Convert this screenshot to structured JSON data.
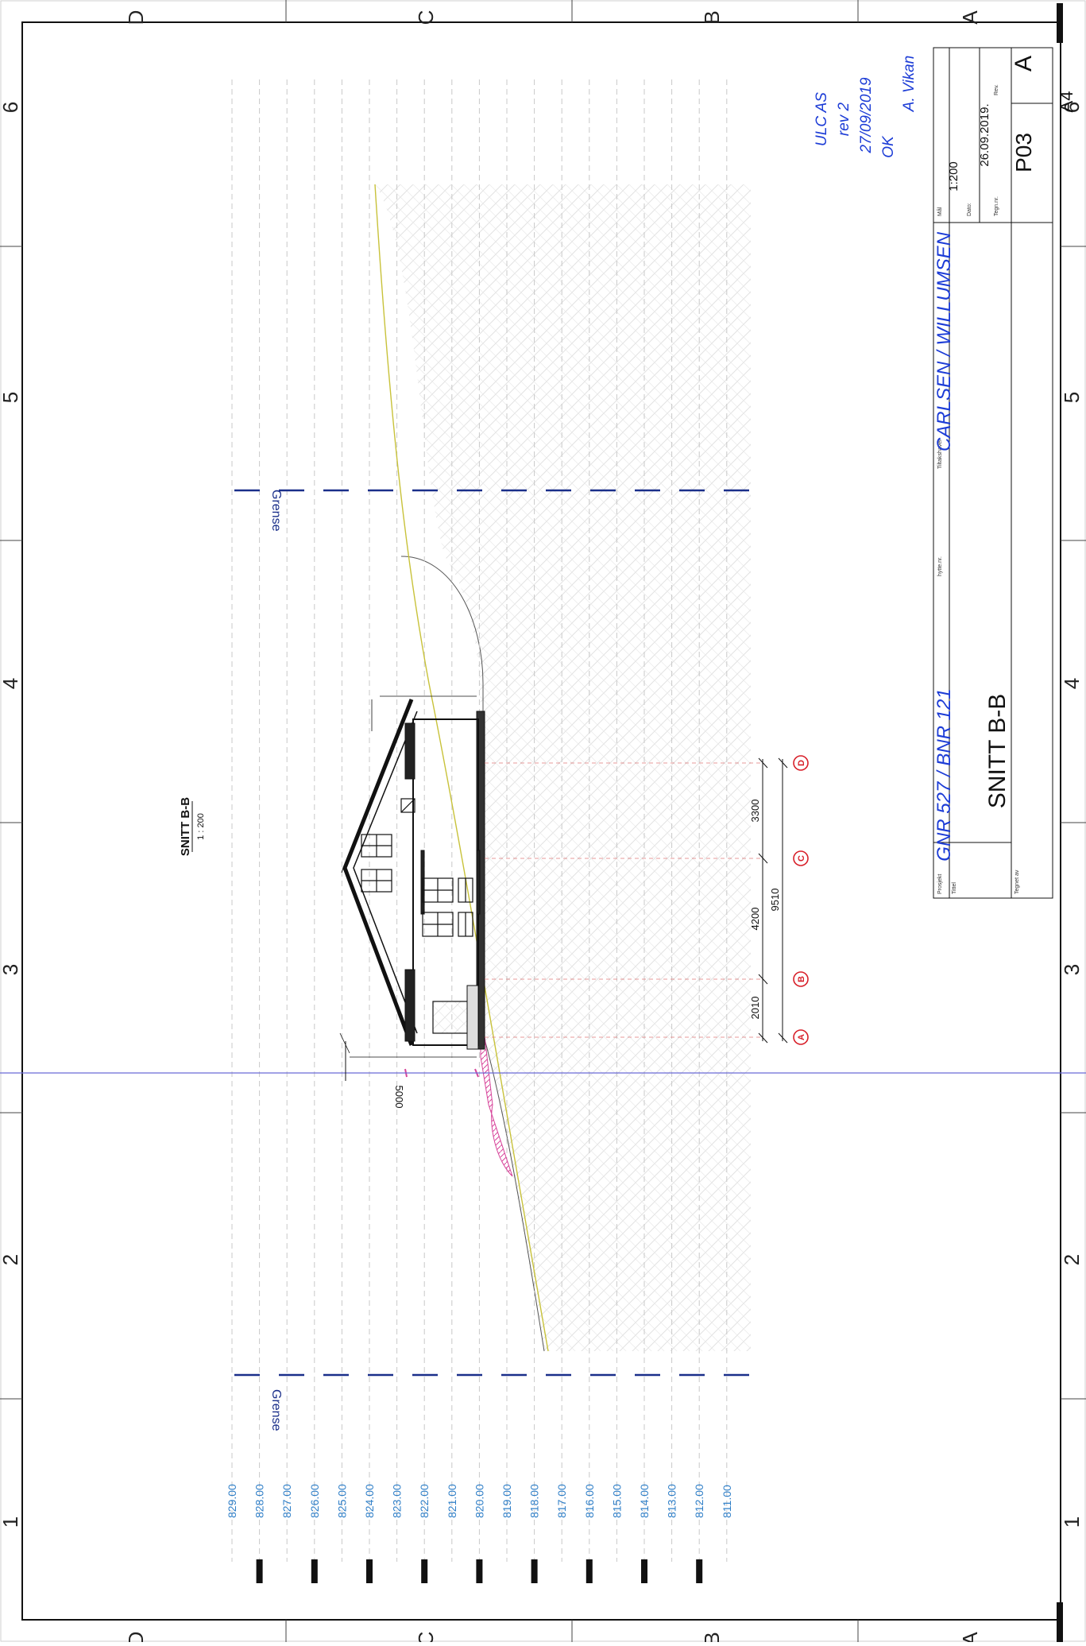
{
  "sheet": {
    "border_columns": [
      "1",
      "2",
      "3",
      "4",
      "5",
      "6"
    ],
    "border_rows": [
      "A",
      "B",
      "C",
      "D"
    ]
  },
  "drawing": {
    "title": "SNITT B-B",
    "scale": "1 : 200",
    "boundary_label": "Grense",
    "height_dimension": "5000",
    "dimensions": {
      "total": "9510",
      "segments": [
        "2010",
        "4200",
        "3300"
      ]
    },
    "grid_axes": [
      "A",
      "B",
      "C",
      "D"
    ],
    "elevations": [
      "829.00",
      "828.00",
      "827.00",
      "826.00",
      "825.00",
      "824.00",
      "823.00",
      "822.00",
      "821.00",
      "820.00",
      "819.00",
      "818.00",
      "817.00",
      "816.00",
      "815.00",
      "814.00",
      "813.00",
      "812.00",
      "811.00"
    ]
  },
  "title_block": {
    "project_label": "Prosjekt",
    "project_value": "GNR 527 / BNR 121",
    "cabin_label": "hytte.nr.",
    "client_label": "Tiltakshaver",
    "client_value": "CARLSEN / WILLUMSEN",
    "title_label": "Tittel",
    "title_value": "SNITT B-B",
    "drawn_by_label": "Tegnet av",
    "scale_label": "Mål",
    "scale_value": "1:200",
    "date_label": "Dato:",
    "date_value": "26.09.2019.",
    "drawing_no_label": "Tegn.nr.",
    "drawing_no_value": "P03",
    "rev_label": "Rev.",
    "rev_value": "A",
    "paper_size": "A4"
  },
  "annotation": {
    "lines": [
      "ULC AS",
      "rev 2",
      "27/09/2019",
      "OK",
      "A. Vikan"
    ]
  },
  "colors": {
    "boundary": "#1a2f8a",
    "elevation_text": "#2f7fc8",
    "terrain_line": "#c8c23a",
    "annotation_ink": "#1c3cd6",
    "grid_marker": "#d8202a"
  }
}
